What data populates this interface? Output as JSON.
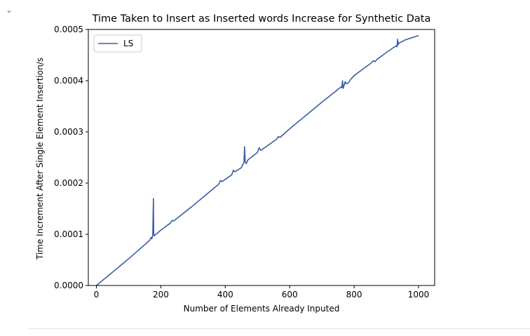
{
  "chart_data": {
    "type": "line",
    "title": "Time Taken to Insert as Inserted words Increase for Synthetic Data",
    "xlabel": "Number of Elements Already Inputed",
    "ylabel": "Time Increment After Single Element Insertion/s",
    "xlim": [
      -25,
      1050
    ],
    "ylim": [
      0,
      0.0005
    ],
    "xticks": [
      0,
      200,
      400,
      600,
      800,
      1000
    ],
    "xtick_labels": [
      "0",
      "200",
      "400",
      "600",
      "800",
      "1000"
    ],
    "yticks": [
      0,
      0.0001,
      0.0002,
      0.0003,
      0.0004,
      0.0005
    ],
    "ytick_labels": [
      "0.0000",
      "0.0001",
      "0.0002",
      "0.0003",
      "0.0004",
      "0.0005"
    ],
    "grid": false,
    "legend": "top-left",
    "series": [
      {
        "name": "LS",
        "color": "#3a5ea8",
        "x": [
          0,
          100,
          165,
          170,
          172,
          175,
          177,
          178,
          180,
          182,
          185,
          200,
          230,
          235,
          240,
          300,
          380,
          385,
          390,
          420,
          425,
          430,
          440,
          450,
          455,
          458,
          460,
          462,
          465,
          470,
          500,
          505,
          510,
          520,
          560,
          565,
          570,
          600,
          700,
          760,
          762,
          764,
          766,
          768,
          770,
          772,
          775,
          780,
          785,
          790,
          800,
          850,
          860,
          865,
          870,
          900,
          930,
          933,
          935,
          937,
          938,
          940,
          945,
          960,
          980,
          1000
        ],
        "y": [
          0,
          5.2e-05,
          8.8e-05,
          9.4e-05,
          9.1e-05,
          9.7e-05,
          0.00017,
          0.0001,
          9.7e-05,
          9.9e-05,
          0.0001,
          0.000108,
          0.000122,
          0.000127,
          0.000126,
          0.000156,
          0.000198,
          0.000205,
          0.000203,
          0.000216,
          0.000225,
          0.000222,
          0.000226,
          0.00023,
          0.000237,
          0.00024,
          0.000271,
          0.000241,
          0.000238,
          0.000245,
          0.00026,
          0.000269,
          0.000264,
          0.000268,
          0.000286,
          0.000291,
          0.000289,
          0.000306,
          0.000358,
          0.000388,
          0.000386,
          0.0004,
          0.000385,
          0.00039,
          0.000392,
          0.000398,
          0.000394,
          0.000395,
          0.000398,
          0.000403,
          0.00041,
          0.000433,
          0.000439,
          0.000437,
          0.000441,
          0.000455,
          0.000468,
          0.000466,
          0.000481,
          0.00047,
          0.000472,
          0.000474,
          0.000475,
          0.00048,
          0.000484,
          0.000488
        ]
      }
    ]
  },
  "icons": {
    "collapse": "chevron-down-icon"
  }
}
